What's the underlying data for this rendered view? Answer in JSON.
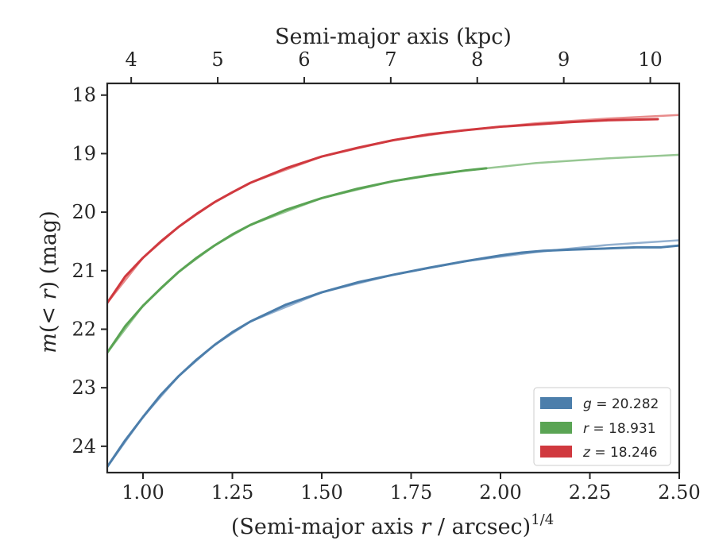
{
  "chart_data": {
    "type": "line",
    "xlabel_parts": {
      "prefix": "(Semi-major axis ",
      "var": "r",
      "suffix": " / arcsec)",
      "sup": "1/4"
    },
    "ylabel_parts": {
      "pre": "m",
      "mid": "(< ",
      "var": "r",
      "post": ") (mag)"
    },
    "top_xlabel": "Semi-major axis (kpc)",
    "xlim": [
      0.9,
      2.5
    ],
    "ylim": [
      24.45,
      17.8
    ],
    "y_inverted": true,
    "x_ticks": [
      1.0,
      1.25,
      1.5,
      1.75,
      2.0,
      2.25,
      2.5
    ],
    "x_tick_labels": [
      "1.00",
      "1.25",
      "1.50",
      "1.75",
      "2.00",
      "2.25",
      "2.50"
    ],
    "y_ticks": [
      18,
      19,
      20,
      21,
      22,
      23,
      24
    ],
    "y_tick_labels": [
      "18",
      "19",
      "20",
      "21",
      "22",
      "23",
      "24"
    ],
    "top_ticks": [
      {
        "label": "4",
        "x": 0.967
      },
      {
        "label": "5",
        "x": 1.209
      },
      {
        "label": "6",
        "x": 1.451
      },
      {
        "label": "7",
        "x": 1.693
      },
      {
        "label": "8",
        "x": 1.935
      },
      {
        "label": "9",
        "x": 2.177
      },
      {
        "label": "10",
        "x": 2.419
      }
    ],
    "legend_position": "lower-right",
    "legend": [
      {
        "var": "g",
        "text": " = 20.282",
        "color": "#4c7eab"
      },
      {
        "var": "r",
        "text": " = 18.931",
        "color": "#5aa454"
      },
      {
        "var": "z",
        "text": " = 18.246",
        "color": "#d0393f"
      }
    ],
    "series": [
      {
        "name": "z",
        "color": "#d0393f",
        "model_color": "#e88c8c",
        "x": [
          0.9,
          0.95,
          1.0,
          1.05,
          1.1,
          1.15,
          1.2,
          1.25,
          1.3,
          1.4,
          1.5,
          1.6,
          1.7,
          1.8,
          1.9,
          2.0,
          2.1,
          2.2,
          2.3,
          2.44
        ],
        "y": [
          21.55,
          21.1,
          20.78,
          20.5,
          20.25,
          20.03,
          19.83,
          19.66,
          19.5,
          19.25,
          19.05,
          18.9,
          18.77,
          18.67,
          18.6,
          18.54,
          18.5,
          18.46,
          18.43,
          18.41
        ],
        "model_x": [
          0.9,
          1.0,
          1.1,
          1.2,
          1.3,
          1.5,
          1.7,
          1.9,
          2.1,
          2.3,
          2.5
        ],
        "model_y": [
          21.55,
          20.78,
          20.25,
          19.83,
          19.5,
          19.05,
          18.77,
          18.6,
          18.48,
          18.4,
          18.34
        ]
      },
      {
        "name": "r",
        "color": "#5aa454",
        "model_color": "#97c793",
        "x": [
          0.9,
          0.95,
          1.0,
          1.05,
          1.1,
          1.15,
          1.2,
          1.25,
          1.3,
          1.4,
          1.5,
          1.6,
          1.7,
          1.8,
          1.9,
          1.96
        ],
        "y": [
          22.4,
          21.95,
          21.6,
          21.3,
          21.02,
          20.78,
          20.57,
          20.38,
          20.22,
          19.96,
          19.76,
          19.6,
          19.47,
          19.37,
          19.29,
          19.25
        ],
        "model_x": [
          0.9,
          1.0,
          1.1,
          1.2,
          1.3,
          1.5,
          1.7,
          1.9,
          2.1,
          2.3,
          2.5
        ],
        "model_y": [
          22.4,
          21.6,
          21.02,
          20.57,
          20.22,
          19.76,
          19.47,
          19.29,
          19.16,
          19.08,
          19.02
        ]
      },
      {
        "name": "g",
        "color": "#4c7eab",
        "model_color": "#93b0cf",
        "x": [
          0.9,
          0.95,
          1.0,
          1.05,
          1.1,
          1.15,
          1.2,
          1.25,
          1.3,
          1.4,
          1.5,
          1.6,
          1.7,
          1.8,
          1.9,
          2.0,
          2.06,
          2.12,
          2.2,
          2.3,
          2.38,
          2.45,
          2.5
        ],
        "y": [
          24.35,
          23.9,
          23.5,
          23.12,
          22.8,
          22.52,
          22.27,
          22.05,
          21.87,
          21.58,
          21.37,
          21.2,
          21.07,
          20.95,
          20.84,
          20.74,
          20.69,
          20.66,
          20.64,
          20.62,
          20.6,
          20.6,
          20.57
        ],
        "model_x": [
          0.9,
          1.0,
          1.1,
          1.2,
          1.3,
          1.5,
          1.7,
          1.9,
          2.1,
          2.3,
          2.5
        ],
        "model_y": [
          24.35,
          23.5,
          22.8,
          22.27,
          21.87,
          21.37,
          21.07,
          20.84,
          20.68,
          20.56,
          20.48
        ]
      }
    ]
  }
}
